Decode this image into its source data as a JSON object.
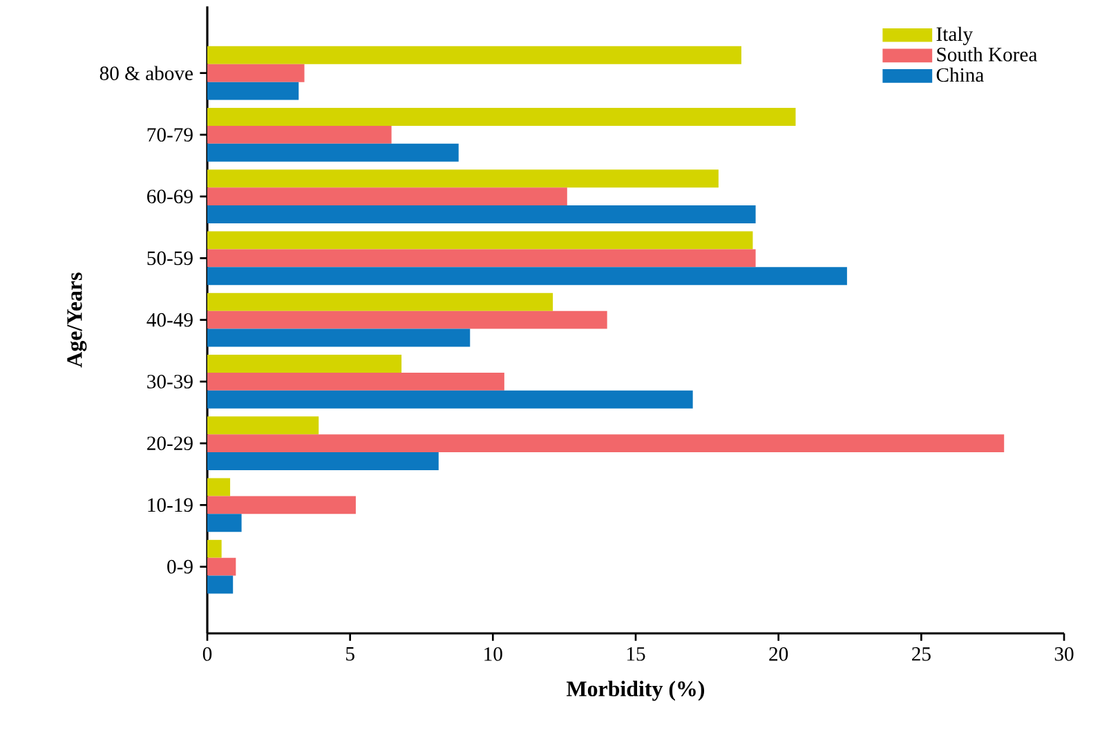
{
  "chart_data": {
    "type": "bar",
    "orientation": "horizontal",
    "categories": [
      "80 & above",
      "70-79",
      "60-69",
      "50-59",
      "40-49",
      "30-39",
      "20-29",
      "10-19",
      "0-9"
    ],
    "series": [
      {
        "name": "Italy",
        "color": "#d4d400",
        "values": [
          18.7,
          20.6,
          17.9,
          19.1,
          12.1,
          6.8,
          3.9,
          0.8,
          0.5
        ]
      },
      {
        "name": "South Korea",
        "color": "#f2676a",
        "values": [
          3.4,
          6.45,
          12.6,
          19.2,
          14.0,
          10.4,
          27.9,
          5.2,
          1.0
        ]
      },
      {
        "name": "China",
        "color": "#0c78c0",
        "values": [
          3.2,
          8.8,
          19.2,
          22.4,
          9.2,
          17.0,
          8.1,
          1.2,
          0.9
        ]
      }
    ],
    "xlabel": "Morbidity (%)",
    "ylabel": "Age/Years",
    "xlim": [
      0,
      30
    ],
    "xticks": [
      0,
      5,
      10,
      15,
      20,
      25,
      30
    ],
    "legend": "top right"
  }
}
